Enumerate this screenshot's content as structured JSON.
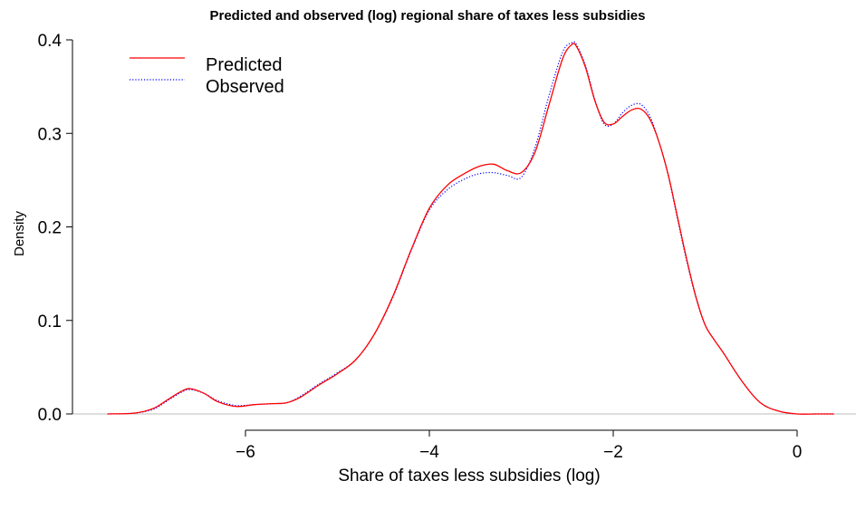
{
  "chart_data": {
    "type": "line",
    "title": "Predicted and observed (log) regional share of taxes less subsidies",
    "xlabel": "Share of taxes less subsidies (log)",
    "ylabel": "Density",
    "xlim": [
      -7.5,
      0.4
    ],
    "ylim": [
      0,
      0.4
    ],
    "x_ticks": [
      -6,
      -4,
      -2,
      0
    ],
    "x_tick_labels": [
      "−6",
      "−4",
      "−2",
      "0"
    ],
    "y_ticks": [
      0.0,
      0.1,
      0.2,
      0.3,
      0.4
    ],
    "y_tick_labels": [
      "0.0",
      "0.1",
      "0.2",
      "0.3",
      "0.4"
    ],
    "baseline": 0,
    "legend_position": "top-left",
    "series": [
      {
        "name": "Predicted",
        "color": "#ff0000",
        "style": "solid",
        "x": [
          -7.5,
          -7.2,
          -7.0,
          -6.85,
          -6.7,
          -6.6,
          -6.45,
          -6.3,
          -6.1,
          -5.9,
          -5.7,
          -5.55,
          -5.4,
          -5.2,
          -5.0,
          -4.8,
          -4.6,
          -4.4,
          -4.2,
          -4.0,
          -3.8,
          -3.6,
          -3.45,
          -3.3,
          -3.15,
          -3.0,
          -2.85,
          -2.7,
          -2.55,
          -2.45,
          -2.4,
          -2.3,
          -2.2,
          -2.1,
          -2.0,
          -1.9,
          -1.8,
          -1.7,
          -1.6,
          -1.5,
          -1.4,
          -1.3,
          -1.2,
          -1.1,
          -1.0,
          -0.9,
          -0.8,
          -0.6,
          -0.4,
          -0.2,
          0.0,
          0.2,
          0.4
        ],
        "values": [
          0.0,
          0.001,
          0.006,
          0.015,
          0.024,
          0.027,
          0.022,
          0.013,
          0.008,
          0.01,
          0.011,
          0.012,
          0.018,
          0.031,
          0.043,
          0.058,
          0.085,
          0.125,
          0.175,
          0.22,
          0.245,
          0.258,
          0.265,
          0.267,
          0.26,
          0.258,
          0.28,
          0.33,
          0.38,
          0.395,
          0.393,
          0.37,
          0.335,
          0.312,
          0.31,
          0.318,
          0.325,
          0.326,
          0.315,
          0.29,
          0.255,
          0.21,
          0.165,
          0.125,
          0.095,
          0.079,
          0.065,
          0.035,
          0.012,
          0.003,
          0.0,
          0.0,
          0.0
        ]
      },
      {
        "name": "Observed",
        "color": "#0000ff",
        "style": "dotted",
        "x": [
          -7.5,
          -7.2,
          -7.0,
          -6.85,
          -6.7,
          -6.6,
          -6.45,
          -6.3,
          -6.1,
          -5.9,
          -5.7,
          -5.55,
          -5.4,
          -5.2,
          -5.0,
          -4.8,
          -4.6,
          -4.4,
          -4.2,
          -4.0,
          -3.8,
          -3.6,
          -3.45,
          -3.3,
          -3.15,
          -3.0,
          -2.85,
          -2.7,
          -2.55,
          -2.45,
          -2.4,
          -2.3,
          -2.2,
          -2.1,
          -2.0,
          -1.9,
          -1.8,
          -1.7,
          -1.6,
          -1.5,
          -1.4,
          -1.3,
          -1.2,
          -1.1,
          -1.0,
          -0.9,
          -0.8,
          -0.6,
          -0.4,
          -0.2,
          0.0,
          0.2,
          0.4
        ],
        "values": [
          0.0,
          0.001,
          0.005,
          0.014,
          0.023,
          0.026,
          0.022,
          0.014,
          0.009,
          0.01,
          0.011,
          0.012,
          0.019,
          0.032,
          0.044,
          0.058,
          0.085,
          0.124,
          0.174,
          0.218,
          0.24,
          0.252,
          0.257,
          0.258,
          0.255,
          0.253,
          0.285,
          0.34,
          0.387,
          0.397,
          0.395,
          0.372,
          0.336,
          0.31,
          0.31,
          0.322,
          0.33,
          0.331,
          0.318,
          0.29,
          0.254,
          0.208,
          0.163,
          0.124,
          0.095,
          0.079,
          0.065,
          0.035,
          0.012,
          0.003,
          0.0,
          0.0,
          0.0
        ]
      }
    ]
  }
}
